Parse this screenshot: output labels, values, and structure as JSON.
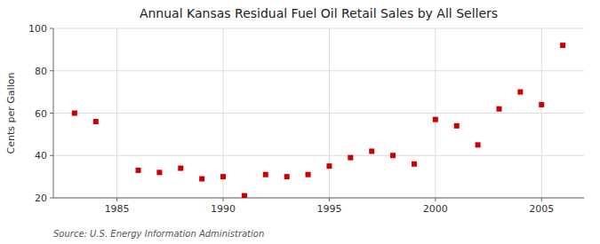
{
  "chart_data": {
    "type": "scatter",
    "title": "Annual Kansas Residual Fuel Oil Retail Sales by All Sellers",
    "ylabel": "Cents per Gallon",
    "annotations": [
      "Source: U.S. Energy Information Administration"
    ],
    "x": [
      1983,
      1984,
      1986,
      1987,
      1988,
      1989,
      1990,
      1991,
      1992,
      1993,
      1994,
      1995,
      1996,
      1997,
      1998,
      1999,
      2000,
      2001,
      2002,
      2003,
      2004,
      2005,
      2006
    ],
    "values": [
      60,
      56,
      33,
      32,
      34,
      29,
      30,
      21,
      31,
      30,
      31,
      35,
      39,
      42,
      40,
      36,
      57,
      54,
      45,
      62,
      70,
      64,
      92
    ],
    "color": "#cc0000",
    "marker": "square",
    "xlim": [
      1982,
      2007
    ],
    "ylim": [
      20,
      100
    ],
    "xticks": [
      1985,
      1990,
      1995,
      2000,
      2005
    ],
    "yticks": [
      20,
      40,
      60,
      80,
      100
    ],
    "grid": true
  }
}
